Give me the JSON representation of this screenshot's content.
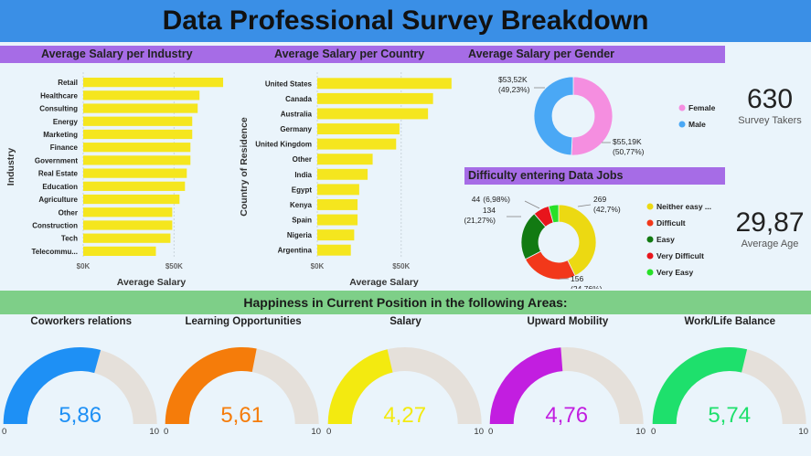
{
  "page": {
    "title": "Data Professional Survey Breakdown"
  },
  "kpis": {
    "survey_takers": {
      "value": "630",
      "label": "Survey Takers"
    },
    "average_age": {
      "value": "29,87",
      "label": "Average Age"
    }
  },
  "happiness": {
    "header": "Happiness in Current Position in the following Areas:"
  },
  "colors": {
    "title_bar": "#3a8fe6",
    "panel_header": "#a66ce6",
    "happiness_bar": "#7ecf88",
    "bar": "#f5e61e",
    "gauge_bg": "#e5e0da"
  },
  "chart_data": [
    {
      "id": "industry",
      "type": "bar",
      "orientation": "horizontal",
      "title": "Average Salary per Industry",
      "xlabel": "Average Salary",
      "ylabel": "Industry",
      "categories": [
        "Retail",
        "Healthcare",
        "Consulting",
        "Energy",
        "Marketing",
        "Finance",
        "Government",
        "Real Estate",
        "Education",
        "Agriculture",
        "Other",
        "Construction",
        "Tech",
        "Telecommu..."
      ],
      "values": [
        77000,
        64000,
        63000,
        60000,
        60000,
        59000,
        59000,
        57000,
        56000,
        53000,
        49000,
        49000,
        48000,
        40000
      ],
      "xticks": [
        "$0K",
        "$50K"
      ],
      "xlim": [
        0,
        80000
      ],
      "grid": true
    },
    {
      "id": "country",
      "type": "bar",
      "orientation": "horizontal",
      "title": "Average Salary per Country",
      "xlabel": "Average Salary",
      "ylabel": "Country of Residence",
      "categories": [
        "United States",
        "Canada",
        "Australia",
        "Germany",
        "United Kingdom",
        "Other",
        "India",
        "Egypt",
        "Kenya",
        "Spain",
        "Nigeria",
        "Argentina"
      ],
      "values": [
        80000,
        69000,
        66000,
        49000,
        47000,
        33000,
        30000,
        25000,
        24000,
        24000,
        22000,
        20000
      ],
      "xticks": [
        "$0K",
        "$50K"
      ],
      "xlim": [
        0,
        85000
      ],
      "grid": true
    },
    {
      "id": "gender",
      "type": "pie",
      "donut": true,
      "title": "Average Salary per Gender",
      "legend": "right",
      "slices": [
        {
          "name": "Female",
          "label": "$55,19K (50,77%)",
          "value": 55.19,
          "color": "#f58ee0"
        },
        {
          "name": "Male",
          "label": "$53,52K (49,23%)",
          "value": 53.52,
          "color": "#4aa8f5"
        }
      ]
    },
    {
      "id": "difficulty",
      "type": "pie",
      "donut": true,
      "title": "Difficulty entering Data Jobs",
      "legend": "right",
      "slices": [
        {
          "name": "Neither easy ...",
          "label": "269 (42,7%)",
          "value": 269,
          "color": "#ecd912"
        },
        {
          "name": "Difficult",
          "label": "156 (24,76%)",
          "value": 156,
          "color": "#f2381a"
        },
        {
          "name": "Easy",
          "label": "134 (21,27%)",
          "value": 134,
          "color": "#127a12"
        },
        {
          "name": "Very Difficult",
          "label": "44 (6,98%)",
          "value": 44,
          "color": "#e8151c"
        },
        {
          "name": "Very Easy",
          "label": "",
          "value": 27,
          "color": "#27e027"
        }
      ]
    },
    {
      "id": "gauges",
      "type": "gauge",
      "min": 0,
      "max": 10,
      "min_label": "0",
      "max_label": "10",
      "items": [
        {
          "title": "Coworkers relations",
          "value": 5.86,
          "display": "5,86",
          "color": "#1e90f5"
        },
        {
          "title": "Learning Opportunities",
          "value": 5.61,
          "display": "5,61",
          "color": "#f57c0a"
        },
        {
          "title": "Salary",
          "value": 4.27,
          "display": "4,27",
          "color": "#f3ea10"
        },
        {
          "title": "Upward Mobility",
          "value": 4.76,
          "display": "4,76",
          "color": "#c21ee0"
        },
        {
          "title": "Work/Life Balance",
          "value": 5.74,
          "display": "5,74",
          "color": "#1ee06c"
        }
      ]
    }
  ]
}
